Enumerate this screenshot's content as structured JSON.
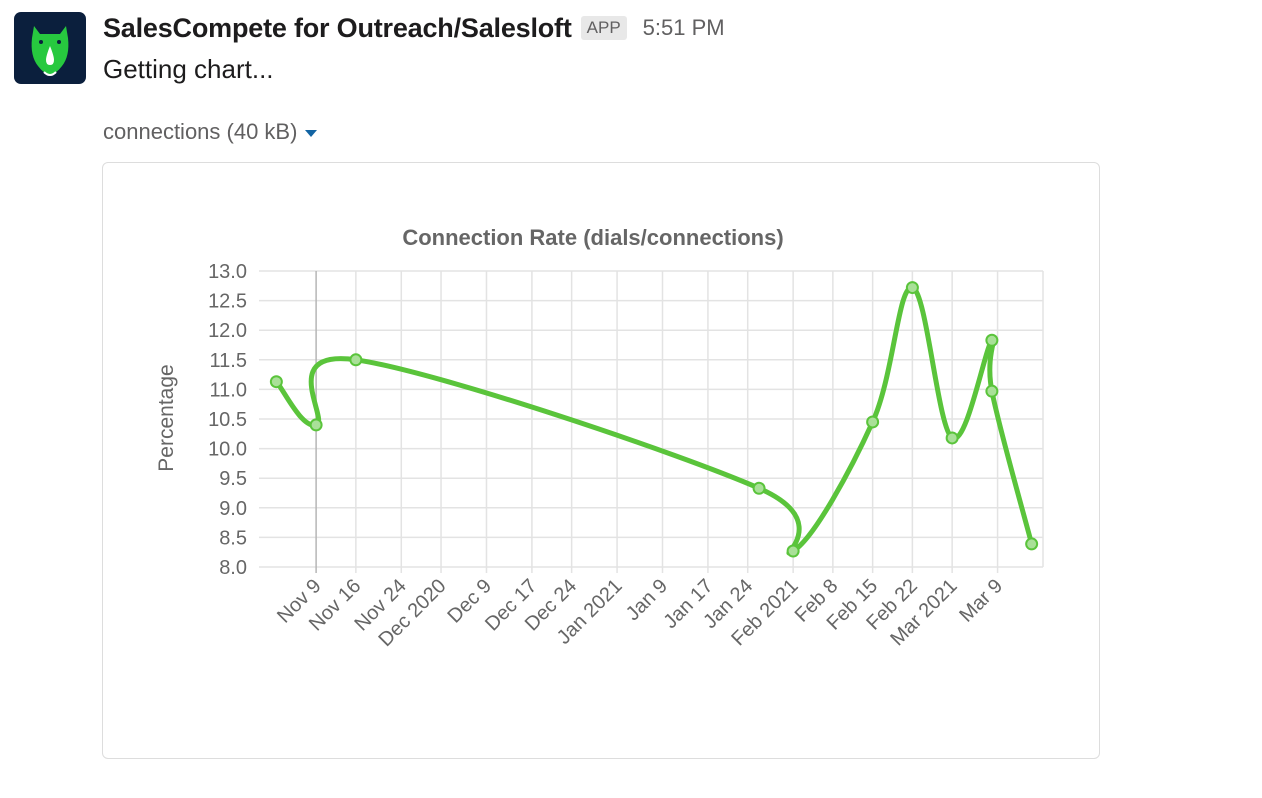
{
  "message": {
    "sender": "SalesCompete for Outreach/Salesloft",
    "badge": "APP",
    "time": "5:51 PM",
    "text": "Getting chart...",
    "avatar_icon": "green-rhino-logo-icon"
  },
  "attachment": {
    "label": "connections (40 kB)",
    "caret_icon": "caret-down-icon"
  },
  "colors": {
    "line": "#5ac43b",
    "grid": "#e3e3e3",
    "axis_text": "#666666",
    "link": "#1264a3",
    "avatar_bg": "#0b1f3d",
    "avatar_fg": "#27c93f"
  },
  "chart_data": {
    "type": "line",
    "title": "Connection Rate (dials/connections)",
    "ylabel": "Percentage",
    "xlabel": "",
    "ylim": [
      8.0,
      13.0
    ],
    "xlim": [
      "2020-10-31",
      "2021-03-17"
    ],
    "yticks": [
      "13.0",
      "12.5",
      "12.0",
      "11.5",
      "11.0",
      "10.5",
      "10.0",
      "9.5",
      "9.0",
      "8.5",
      "8.0"
    ],
    "xticks": [
      {
        "label": "Nov 9",
        "date": "2020-11-09"
      },
      {
        "label": "Nov 16",
        "date": "2020-11-16"
      },
      {
        "label": "Nov 24",
        "date": "2020-11-24"
      },
      {
        "label": "Dec 2020",
        "date": "2020-12-01"
      },
      {
        "label": "Dec 9",
        "date": "2020-12-09"
      },
      {
        "label": "Dec 17",
        "date": "2020-12-17"
      },
      {
        "label": "Dec 24",
        "date": "2020-12-24"
      },
      {
        "label": "Jan 2021",
        "date": "2021-01-01"
      },
      {
        "label": "Jan 9",
        "date": "2021-01-09"
      },
      {
        "label": "Jan 17",
        "date": "2021-01-17"
      },
      {
        "label": "Jan 24",
        "date": "2021-01-24"
      },
      {
        "label": "Feb 2021",
        "date": "2021-02-01"
      },
      {
        "label": "Feb 8",
        "date": "2021-02-08"
      },
      {
        "label": "Feb 15",
        "date": "2021-02-15"
      },
      {
        "label": "Feb 22",
        "date": "2021-02-22"
      },
      {
        "label": "Mar 2021",
        "date": "2021-03-01"
      },
      {
        "label": "Mar 9",
        "date": "2021-03-09"
      }
    ],
    "series": [
      {
        "points": [
          {
            "x": "2020-11-02",
            "y": 11.13
          },
          {
            "x": "2020-11-09",
            "y": 10.4
          },
          {
            "x": "2020-11-16",
            "y": 11.5
          },
          {
            "x": "2021-01-26",
            "y": 9.33
          },
          {
            "x": "2021-02-01",
            "y": 8.27
          },
          {
            "x": "2021-02-15",
            "y": 10.45
          },
          {
            "x": "2021-02-22",
            "y": 12.72
          },
          {
            "x": "2021-03-01",
            "y": 10.18
          },
          {
            "x": "2021-03-08",
            "y": 11.83
          },
          {
            "x": "2021-03-08",
            "y": 10.97
          },
          {
            "x": "2021-03-15",
            "y": 8.39
          }
        ]
      }
    ],
    "grid": true,
    "legend": "none"
  }
}
